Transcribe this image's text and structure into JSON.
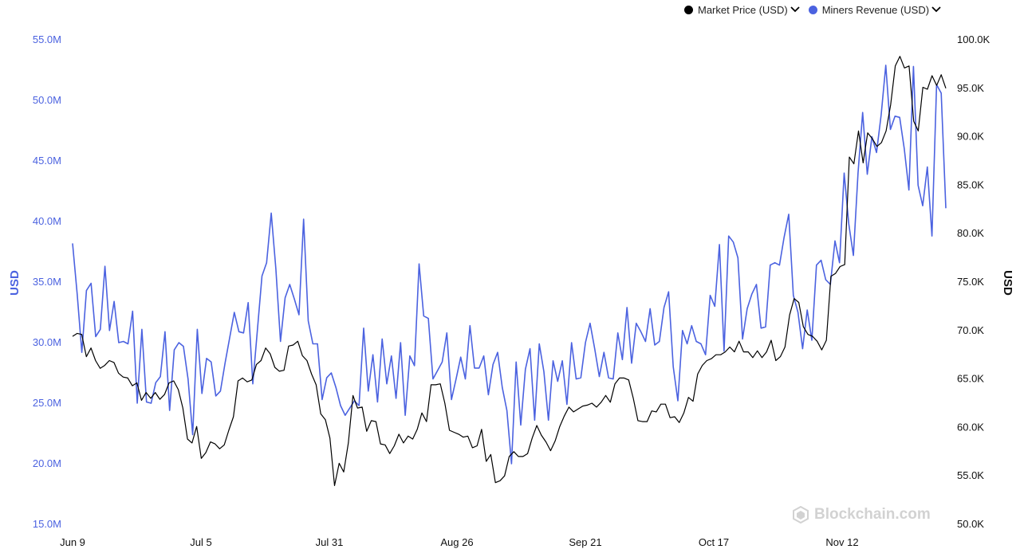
{
  "legend": {
    "price_label": "Market Price (USD)",
    "revenue_label": "Miners Revenue (USD)"
  },
  "watermark": "Blockchain.com",
  "colors": {
    "price": "#000000",
    "revenue": "#4b62e0"
  },
  "chart_data": {
    "type": "line",
    "x_tick_labels": [
      "Jun 9",
      "Jul 5",
      "Jul 31",
      "Aug 26",
      "Sep 21",
      "Oct 17",
      "Nov 12"
    ],
    "y_left": {
      "label": "USD",
      "ylim": [
        15,
        55
      ],
      "ticks": [
        "15.0M",
        "20.0M",
        "25.0M",
        "30.0M",
        "35.0M",
        "40.0M",
        "45.0M",
        "50.0M",
        "55.0M"
      ]
    },
    "y_right": {
      "label": "USD",
      "ylim": [
        50,
        100
      ],
      "ticks": [
        "50.0K",
        "55.0K",
        "60.0K",
        "65.0K",
        "70.0K",
        "75.0K",
        "80.0K",
        "85.0K",
        "90.0K",
        "95.0K",
        "100.0K"
      ]
    },
    "grid": false,
    "legend_position": "top-right",
    "series": [
      {
        "name": "Miners Revenue (USD)",
        "axis": "left",
        "unit": "M",
        "values": [
          38.2,
          34.0,
          29.2,
          34.3,
          34.9,
          30.5,
          31.1,
          36.3,
          31.0,
          33.4,
          30.0,
          30.1,
          29.9,
          32.6,
          25.0,
          31.1,
          25.1,
          25.0,
          26.7,
          27.2,
          30.9,
          24.4,
          29.4,
          30.0,
          29.7,
          27.0,
          22.4,
          31.1,
          25.8,
          28.7,
          28.4,
          25.6,
          26.0,
          28.3,
          30.4,
          32.5,
          30.9,
          30.8,
          33.3,
          26.6,
          31.0,
          35.5,
          36.6,
          40.7,
          36.1,
          30.1,
          33.7,
          34.8,
          33.6,
          32.3,
          40.2,
          31.8,
          29.9,
          29.9,
          25.3,
          27.1,
          27.5,
          26.3,
          24.8,
          24.0,
          24.6,
          25.2,
          24.8,
          31.2,
          26.0,
          29.0,
          25.1,
          30.3,
          26.6,
          28.9,
          25.4,
          30.0,
          24.0,
          28.9,
          28.1,
          36.5,
          32.2,
          32.0,
          27.0,
          27.7,
          28.4,
          30.8,
          25.3,
          27.0,
          28.8,
          27.0,
          31.4,
          27.9,
          27.9,
          28.9,
          25.7,
          28.2,
          29.2,
          26.3,
          24.4,
          20.0,
          28.4,
          23.2,
          27.8,
          29.5,
          23.6,
          29.9,
          27.6,
          23.6,
          28.5,
          26.8,
          28.5,
          24.9,
          30.0,
          27.0,
          27.1,
          30.0,
          31.6,
          29.5,
          27.2,
          29.2,
          27.1,
          27.0,
          30.8,
          28.6,
          32.9,
          28.3,
          31.6,
          30.9,
          30.1,
          32.8,
          29.8,
          30.1,
          32.9,
          34.2,
          28.0,
          25.2,
          31.0,
          29.9,
          31.4,
          30.1,
          29.9,
          29.0,
          33.9,
          33.0,
          38.1,
          29.3,
          38.8,
          38.3,
          37.0,
          30.3,
          32.8,
          34.0,
          34.8,
          31.2,
          31.3,
          36.4,
          36.6,
          36.4,
          38.7,
          40.6,
          33.9,
          32.5,
          29.5,
          32.7,
          30.2,
          36.4,
          36.8,
          35.2,
          34.8,
          38.4,
          36.6,
          44.0,
          39.8,
          37.2,
          44.0,
          49.0,
          43.9,
          47.0,
          45.7,
          48.8,
          52.9,
          47.6,
          48.7,
          48.6,
          46.0,
          42.6,
          52.8,
          43.0,
          41.3,
          44.5,
          38.8,
          51.3,
          50.6,
          41.1
        ]
      },
      {
        "name": "Market Price (USD)",
        "axis": "right",
        "unit": "K",
        "values": [
          69.4,
          69.7,
          69.6,
          67.3,
          68.2,
          66.9,
          66.1,
          66.4,
          66.9,
          66.7,
          65.6,
          65.2,
          65.1,
          64.3,
          64.6,
          62.8,
          63.6,
          63.0,
          63.6,
          62.9,
          63.4,
          64.6,
          64.8,
          63.9,
          62.0,
          58.8,
          58.4,
          60.1,
          56.8,
          57.4,
          58.5,
          58.3,
          57.8,
          58.2,
          59.7,
          61.1,
          64.8,
          65.1,
          64.7,
          64.9,
          66.5,
          66.9,
          68.2,
          67.6,
          66.2,
          65.8,
          65.9,
          68.4,
          68.5,
          68.9,
          67.4,
          66.9,
          65.5,
          64.4,
          61.4,
          60.8,
          58.9,
          54.0,
          56.3,
          55.4,
          58.4,
          63.3,
          62.0,
          62.1,
          59.6,
          60.7,
          60.6,
          58.3,
          58.2,
          57.3,
          58.1,
          59.3,
          58.4,
          59.1,
          58.8,
          59.8,
          61.5,
          60.6,
          64.4,
          64.4,
          64.5,
          62.5,
          59.7,
          59.5,
          59.3,
          59.0,
          59.1,
          57.9,
          58.1,
          59.8,
          56.5,
          57.2,
          54.3,
          54.5,
          55.0,
          57.0,
          57.5,
          57.0,
          57.0,
          57.3,
          58.9,
          60.2,
          59.2,
          58.5,
          57.6,
          58.6,
          60.1,
          61.2,
          62.1,
          61.6,
          61.9,
          62.2,
          62.3,
          62.5,
          62.1,
          62.6,
          63.3,
          62.6,
          64.5,
          65.1,
          65.1,
          64.9,
          63.0,
          60.7,
          60.6,
          60.6,
          61.7,
          61.6,
          62.4,
          62.4,
          61.0,
          61.1,
          60.5,
          61.5,
          63.1,
          62.7,
          65.5,
          66.4,
          66.9,
          67.1,
          67.5,
          67.5,
          67.8,
          68.3,
          67.8,
          68.9,
          67.8,
          67.8,
          67.2,
          67.9,
          67.2,
          67.8,
          69.0,
          66.9,
          67.3,
          68.3,
          71.6,
          73.3,
          72.9,
          70.4,
          69.6,
          69.4,
          68.9,
          68.0,
          69.0,
          75.6,
          75.9,
          76.6,
          76.8,
          87.9,
          87.2,
          90.6,
          87.3,
          90.4,
          89.8,
          89.0,
          89.4,
          90.6,
          93.3,
          97.3,
          98.3,
          97.1,
          97.3,
          91.6,
          90.6,
          95.1,
          94.9,
          96.3,
          95.3,
          96.4,
          95.0
        ]
      }
    ]
  }
}
